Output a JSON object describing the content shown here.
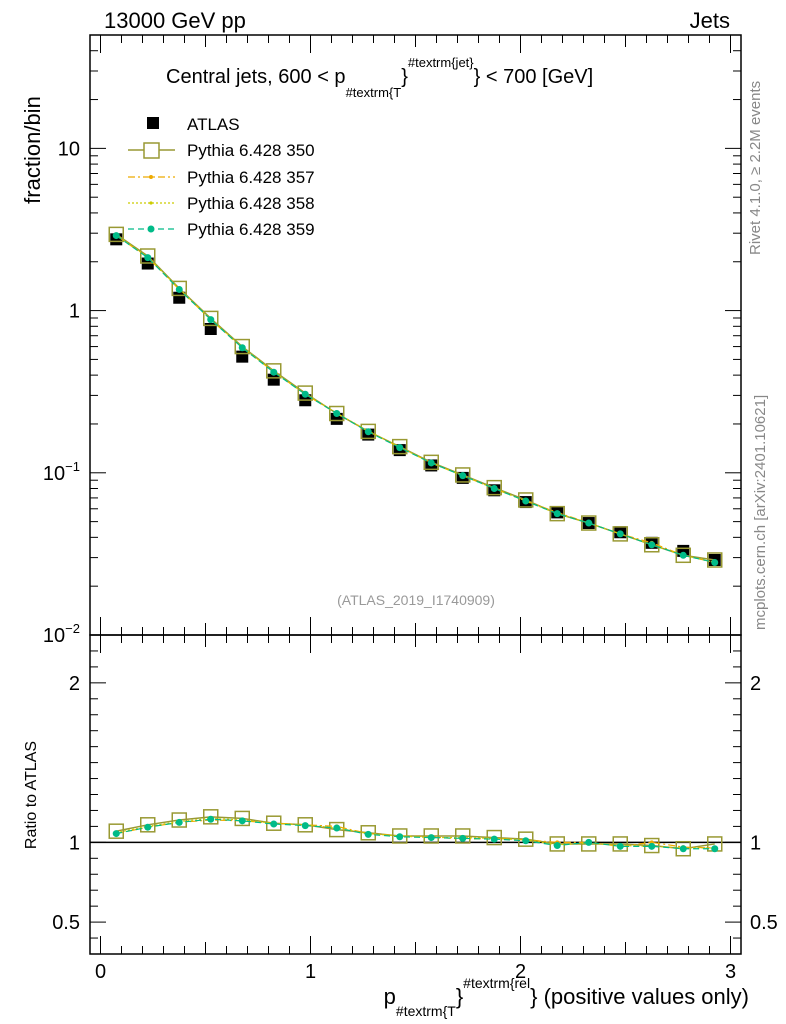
{
  "header": {
    "left": "13000 GeV pp",
    "right": "Jets"
  },
  "side_labels": {
    "rivet": "Rivet 4.1.0, ≥ 2.2M events",
    "mcplots": "mcplots.cern.ch [arXiv:2401.10621]"
  },
  "chart_data": [
    {
      "type": "scatter",
      "panel": "main",
      "title": "Central jets, 600 < p",
      "title_sub": "#textrm{T",
      "title_sup": "#textrm{jet}",
      "title_end": " < 700 [GeV]",
      "ylabel": "fraction/bin",
      "yscale": "log",
      "ylim": [
        0.01,
        50
      ],
      "xlim": [
        -0.05,
        3.05
      ],
      "analysis_tag": "(ATLAS_2019_I1740909)",
      "y_ticks": [
        {
          "value": 10,
          "mantissa": "10",
          "exponent": ""
        },
        {
          "value": 1,
          "mantissa": "1",
          "exponent": ""
        },
        {
          "value": 0.1,
          "mantissa": "10",
          "exponent": "−1"
        },
        {
          "value": 0.01,
          "mantissa": "10",
          "exponent": "−2"
        }
      ],
      "x": [
        0.075,
        0.225,
        0.375,
        0.525,
        0.675,
        0.825,
        0.975,
        1.125,
        1.275,
        1.425,
        1.575,
        1.725,
        1.875,
        2.025,
        2.175,
        2.325,
        2.475,
        2.625,
        2.775,
        2.925
      ],
      "series": [
        {
          "name": "ATLAS",
          "color": "#000000",
          "marker": "filled-square",
          "line": "none",
          "values": [
            2.75,
            1.95,
            1.2,
            0.77,
            0.52,
            0.375,
            0.28,
            0.215,
            0.172,
            0.138,
            0.111,
            0.093,
            0.078,
            0.066,
            0.057,
            0.049,
            0.043,
            0.037,
            0.033,
            0.029
          ]
        },
        {
          "name": "Pythia 6.428 350",
          "color": "#999933",
          "marker": "open-square",
          "line": "solid",
          "values": [
            2.95,
            2.17,
            1.37,
            0.895,
            0.6,
            0.425,
            0.31,
            0.232,
            0.18,
            0.145,
            0.116,
            0.097,
            0.081,
            0.068,
            0.056,
            0.049,
            0.042,
            0.036,
            0.031,
            0.029
          ]
        },
        {
          "name": "Pythia 6.428 357",
          "color": "#eeaa00",
          "marker": "small-dot",
          "line": "dashdot",
          "values": [
            2.9,
            2.13,
            1.35,
            0.88,
            0.59,
            0.42,
            0.305,
            0.232,
            0.18,
            0.144,
            0.115,
            0.096,
            0.08,
            0.067,
            0.057,
            0.049,
            0.042,
            0.037,
            0.031,
            0.028
          ]
        },
        {
          "name": "Pythia 6.428 358",
          "color": "#cccc00",
          "marker": "tiny-dot",
          "line": "dotted",
          "values": [
            2.92,
            2.14,
            1.36,
            0.885,
            0.595,
            0.42,
            0.306,
            0.233,
            0.181,
            0.144,
            0.115,
            0.096,
            0.08,
            0.067,
            0.056,
            0.049,
            0.042,
            0.036,
            0.031,
            0.028
          ]
        },
        {
          "name": "Pythia 6.428 359",
          "color": "#00bb88",
          "marker": "filled-circle",
          "line": "dashed",
          "values": [
            2.9,
            2.12,
            1.35,
            0.88,
            0.59,
            0.417,
            0.305,
            0.232,
            0.179,
            0.143,
            0.115,
            0.096,
            0.08,
            0.067,
            0.056,
            0.049,
            0.042,
            0.036,
            0.031,
            0.028
          ]
        }
      ]
    },
    {
      "type": "line",
      "panel": "ratio",
      "ylabel": "Ratio to ATLAS",
      "ylim": [
        0.3,
        2.3
      ],
      "xlim": [
        -0.05,
        3.05
      ],
      "y_ticks": [
        0.5,
        1,
        2
      ],
      "y_tick_labels": [
        "0.5",
        "1",
        "2"
      ],
      "reference": 1,
      "xlabel": "p",
      "xlabel_sub": "#textrm{T",
      "xlabel_sup": "#textrm{rel",
      "xlabel_end": " (positive values only)",
      "x_ticks": [
        0,
        1,
        2,
        3
      ],
      "x_tick_labels": [
        "0",
        "1",
        "2",
        "3"
      ],
      "x": [
        0.075,
        0.225,
        0.375,
        0.525,
        0.675,
        0.825,
        0.975,
        1.125,
        1.275,
        1.425,
        1.575,
        1.725,
        1.875,
        2.025,
        2.175,
        2.325,
        2.475,
        2.625,
        2.775,
        2.925
      ],
      "series": [
        {
          "name": "Pythia 6.428 350",
          "color": "#999933",
          "marker": "open-square",
          "line": "solid",
          "values": [
            1.07,
            1.11,
            1.14,
            1.16,
            1.15,
            1.12,
            1.11,
            1.08,
            1.06,
            1.04,
            1.04,
            1.04,
            1.03,
            1.02,
            0.99,
            0.99,
            0.99,
            0.98,
            0.96,
            0.99
          ]
        },
        {
          "name": "Pythia 6.428 357",
          "color": "#eeaa00",
          "marker": "small-dot",
          "line": "dashdot",
          "values": [
            1.055,
            1.095,
            1.125,
            1.14,
            1.135,
            1.12,
            1.11,
            1.1,
            1.055,
            1.04,
            1.035,
            1.02,
            1.025,
            1.015,
            1.0,
            1.0,
            0.975,
            1.0,
            0.97,
            0.965
          ]
        },
        {
          "name": "Pythia 6.428 358",
          "color": "#cccc00",
          "marker": "tiny-dot",
          "line": "dotted",
          "values": [
            1.06,
            1.1,
            1.13,
            1.15,
            1.14,
            1.12,
            1.11,
            1.09,
            1.055,
            1.04,
            1.03,
            1.03,
            1.025,
            1.015,
            0.985,
            0.995,
            0.98,
            0.975,
            0.965,
            0.965
          ]
        },
        {
          "name": "Pythia 6.428 359",
          "color": "#00bb88",
          "marker": "filled-circle",
          "line": "dashed",
          "values": [
            1.055,
            1.095,
            1.125,
            1.145,
            1.135,
            1.115,
            1.105,
            1.09,
            1.05,
            1.035,
            1.03,
            1.025,
            1.02,
            1.01,
            0.98,
            1.0,
            0.975,
            0.975,
            0.96,
            0.96
          ]
        }
      ]
    }
  ]
}
